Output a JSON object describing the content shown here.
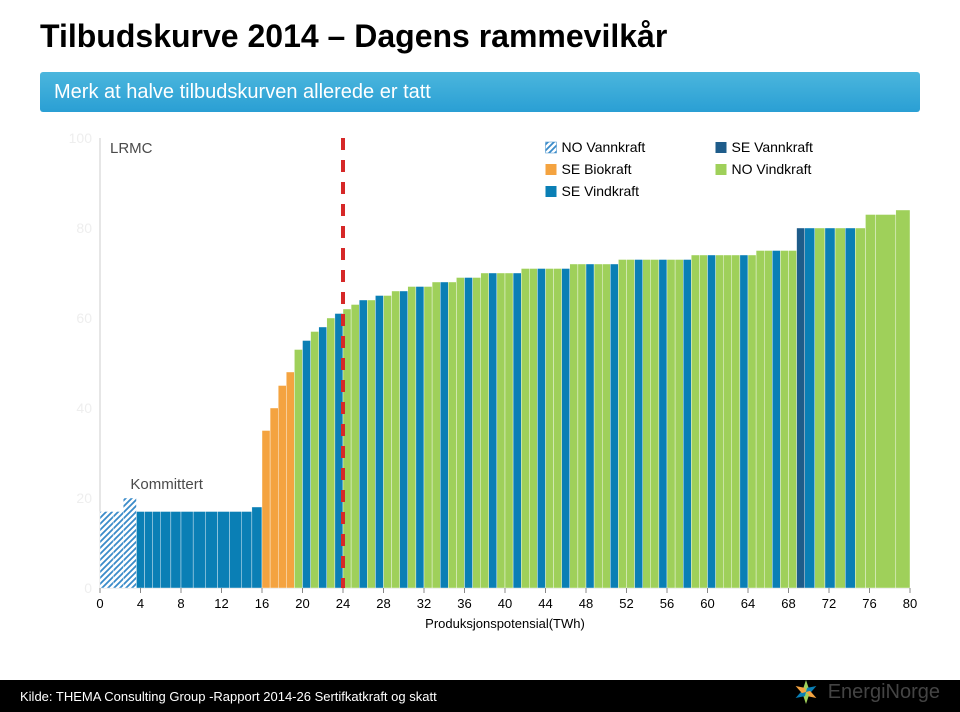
{
  "title": "Tilbudskurve 2014 – Dagens rammevilkår",
  "note": "Merk at halve tilbudskurven allerede er tatt",
  "chart": {
    "type": "bar",
    "lrmc_label": "LRMC",
    "kommittert_label": "Kommittert",
    "xaxis_label": "Produksjonspotensial(TWh)",
    "xlim": [
      0,
      80
    ],
    "ylim": [
      0,
      100
    ],
    "xticks": [
      0,
      4,
      8,
      12,
      16,
      20,
      24,
      28,
      32,
      36,
      40,
      44,
      48,
      52,
      56,
      60,
      64,
      68,
      72,
      76,
      80
    ],
    "yticks": [
      0,
      20,
      40,
      60,
      80,
      100
    ],
    "ytick_color": "#eeeeee",
    "plot_bg": "#ffffff",
    "axis_color": "#cccccc",
    "dashed_line_x": 24,
    "dashed_line_color": "#d62828",
    "colors": {
      "NO_Vannkraft": "#3a8bc9",
      "SE_Vannkraft": "#1e5c8a",
      "SE_Biokraft": "#f4a340",
      "NO_Vindkraft": "#9fd05a",
      "SE_Vindkraft": "#0a7fb5"
    },
    "patterns": {
      "NO_Vannkraft": "hatch",
      "SE_Vannkraft": "solid",
      "SE_Biokraft": "solid",
      "NO_Vindkraft": "solid",
      "SE_Vindkraft": "solid"
    },
    "legend": [
      {
        "key": "NO_Vannkraft",
        "label": "NO Vannkraft"
      },
      {
        "key": "SE_Vannkraft",
        "label": "SE Vannkraft"
      },
      {
        "key": "SE_Biokraft",
        "label": "SE Biokraft"
      },
      {
        "key": "NO_Vindkraft",
        "label": "NO Vindkraft"
      },
      {
        "key": "SE_Vindkraft",
        "label": "SE Vindkraft"
      }
    ],
    "bars": [
      {
        "x0": 0,
        "x1": 1.3,
        "h": 17,
        "cat": "NO_Vannkraft"
      },
      {
        "x0": 1.3,
        "x1": 2.3,
        "h": 17,
        "cat": "NO_Vannkraft"
      },
      {
        "x0": 2.3,
        "x1": 3.6,
        "h": 20,
        "cat": "NO_Vannkraft"
      },
      {
        "x0": 3.6,
        "x1": 4.4,
        "h": 17,
        "cat": "SE_Vindkraft"
      },
      {
        "x0": 4.4,
        "x1": 5.2,
        "h": 17,
        "cat": "SE_Vindkraft"
      },
      {
        "x0": 5.2,
        "x1": 6.0,
        "h": 17,
        "cat": "SE_Vindkraft"
      },
      {
        "x0": 6.0,
        "x1": 7.0,
        "h": 17,
        "cat": "SE_Vindkraft"
      },
      {
        "x0": 7.0,
        "x1": 8.0,
        "h": 17,
        "cat": "SE_Vindkraft"
      },
      {
        "x0": 8.0,
        "x1": 9.2,
        "h": 17,
        "cat": "SE_Vindkraft"
      },
      {
        "x0": 9.2,
        "x1": 10.4,
        "h": 17,
        "cat": "SE_Vindkraft"
      },
      {
        "x0": 10.4,
        "x1": 11.6,
        "h": 17,
        "cat": "SE_Vindkraft"
      },
      {
        "x0": 11.6,
        "x1": 12.8,
        "h": 17,
        "cat": "SE_Vindkraft"
      },
      {
        "x0": 12.8,
        "x1": 14.0,
        "h": 17,
        "cat": "SE_Vindkraft"
      },
      {
        "x0": 14.0,
        "x1": 15.0,
        "h": 17,
        "cat": "SE_Vindkraft"
      },
      {
        "x0": 15.0,
        "x1": 16.0,
        "h": 18,
        "cat": "SE_Vindkraft"
      },
      {
        "x0": 16.0,
        "x1": 16.8,
        "h": 35,
        "cat": "SE_Biokraft"
      },
      {
        "x0": 16.8,
        "x1": 17.6,
        "h": 40,
        "cat": "SE_Biokraft"
      },
      {
        "x0": 17.6,
        "x1": 18.4,
        "h": 45,
        "cat": "SE_Biokraft"
      },
      {
        "x0": 18.4,
        "x1": 19.2,
        "h": 48,
        "cat": "SE_Biokraft"
      },
      {
        "x0": 19.2,
        "x1": 20.0,
        "h": 53,
        "cat": "NO_Vindkraft"
      },
      {
        "x0": 20.0,
        "x1": 20.8,
        "h": 55,
        "cat": "SE_Vindkraft"
      },
      {
        "x0": 20.8,
        "x1": 21.6,
        "h": 57,
        "cat": "NO_Vindkraft"
      },
      {
        "x0": 21.6,
        "x1": 22.4,
        "h": 58,
        "cat": "SE_Vindkraft"
      },
      {
        "x0": 22.4,
        "x1": 23.2,
        "h": 60,
        "cat": "NO_Vindkraft"
      },
      {
        "x0": 23.2,
        "x1": 24.0,
        "h": 61,
        "cat": "SE_Vindkraft"
      },
      {
        "x0": 24.0,
        "x1": 24.8,
        "h": 62,
        "cat": "NO_Vindkraft"
      },
      {
        "x0": 24.8,
        "x1": 25.6,
        "h": 63,
        "cat": "NO_Vindkraft"
      },
      {
        "x0": 25.6,
        "x1": 26.4,
        "h": 64,
        "cat": "SE_Vindkraft"
      },
      {
        "x0": 26.4,
        "x1": 27.2,
        "h": 64,
        "cat": "NO_Vindkraft"
      },
      {
        "x0": 27.2,
        "x1": 28.0,
        "h": 65,
        "cat": "SE_Vindkraft"
      },
      {
        "x0": 28.0,
        "x1": 28.8,
        "h": 65,
        "cat": "NO_Vindkraft"
      },
      {
        "x0": 28.8,
        "x1": 29.6,
        "h": 66,
        "cat": "NO_Vindkraft"
      },
      {
        "x0": 29.6,
        "x1": 30.4,
        "h": 66,
        "cat": "SE_Vindkraft"
      },
      {
        "x0": 30.4,
        "x1": 31.2,
        "h": 67,
        "cat": "NO_Vindkraft"
      },
      {
        "x0": 31.2,
        "x1": 32.0,
        "h": 67,
        "cat": "SE_Vindkraft"
      },
      {
        "x0": 32.0,
        "x1": 32.8,
        "h": 67,
        "cat": "NO_Vindkraft"
      },
      {
        "x0": 32.8,
        "x1": 33.6,
        "h": 68,
        "cat": "NO_Vindkraft"
      },
      {
        "x0": 33.6,
        "x1": 34.4,
        "h": 68,
        "cat": "SE_Vindkraft"
      },
      {
        "x0": 34.4,
        "x1": 35.2,
        "h": 68,
        "cat": "NO_Vindkraft"
      },
      {
        "x0": 35.2,
        "x1": 36.0,
        "h": 69,
        "cat": "NO_Vindkraft"
      },
      {
        "x0": 36.0,
        "x1": 36.8,
        "h": 69,
        "cat": "SE_Vindkraft"
      },
      {
        "x0": 36.8,
        "x1": 37.6,
        "h": 69,
        "cat": "NO_Vindkraft"
      },
      {
        "x0": 37.6,
        "x1": 38.4,
        "h": 70,
        "cat": "NO_Vindkraft"
      },
      {
        "x0": 38.4,
        "x1": 39.2,
        "h": 70,
        "cat": "SE_Vindkraft"
      },
      {
        "x0": 39.2,
        "x1": 40.0,
        "h": 70,
        "cat": "NO_Vindkraft"
      },
      {
        "x0": 40.0,
        "x1": 40.8,
        "h": 70,
        "cat": "NO_Vindkraft"
      },
      {
        "x0": 40.8,
        "x1": 41.6,
        "h": 70,
        "cat": "SE_Vindkraft"
      },
      {
        "x0": 41.6,
        "x1": 42.4,
        "h": 71,
        "cat": "NO_Vindkraft"
      },
      {
        "x0": 42.4,
        "x1": 43.2,
        "h": 71,
        "cat": "NO_Vindkraft"
      },
      {
        "x0": 43.2,
        "x1": 44.0,
        "h": 71,
        "cat": "SE_Vindkraft"
      },
      {
        "x0": 44.0,
        "x1": 44.8,
        "h": 71,
        "cat": "NO_Vindkraft"
      },
      {
        "x0": 44.8,
        "x1": 45.6,
        "h": 71,
        "cat": "NO_Vindkraft"
      },
      {
        "x0": 45.6,
        "x1": 46.4,
        "h": 71,
        "cat": "SE_Vindkraft"
      },
      {
        "x0": 46.4,
        "x1": 47.2,
        "h": 72,
        "cat": "NO_Vindkraft"
      },
      {
        "x0": 47.2,
        "x1": 48.0,
        "h": 72,
        "cat": "NO_Vindkraft"
      },
      {
        "x0": 48.0,
        "x1": 48.8,
        "h": 72,
        "cat": "SE_Vindkraft"
      },
      {
        "x0": 48.8,
        "x1": 49.6,
        "h": 72,
        "cat": "NO_Vindkraft"
      },
      {
        "x0": 49.6,
        "x1": 50.4,
        "h": 72,
        "cat": "NO_Vindkraft"
      },
      {
        "x0": 50.4,
        "x1": 51.2,
        "h": 72,
        "cat": "SE_Vindkraft"
      },
      {
        "x0": 51.2,
        "x1": 52.0,
        "h": 73,
        "cat": "NO_Vindkraft"
      },
      {
        "x0": 52.0,
        "x1": 52.8,
        "h": 73,
        "cat": "NO_Vindkraft"
      },
      {
        "x0": 52.8,
        "x1": 53.6,
        "h": 73,
        "cat": "SE_Vindkraft"
      },
      {
        "x0": 53.6,
        "x1": 54.4,
        "h": 73,
        "cat": "NO_Vindkraft"
      },
      {
        "x0": 54.4,
        "x1": 55.2,
        "h": 73,
        "cat": "NO_Vindkraft"
      },
      {
        "x0": 55.2,
        "x1": 56.0,
        "h": 73,
        "cat": "SE_Vindkraft"
      },
      {
        "x0": 56.0,
        "x1": 56.8,
        "h": 73,
        "cat": "NO_Vindkraft"
      },
      {
        "x0": 56.8,
        "x1": 57.6,
        "h": 73,
        "cat": "NO_Vindkraft"
      },
      {
        "x0": 57.6,
        "x1": 58.4,
        "h": 73,
        "cat": "SE_Vindkraft"
      },
      {
        "x0": 58.4,
        "x1": 59.2,
        "h": 74,
        "cat": "NO_Vindkraft"
      },
      {
        "x0": 59.2,
        "x1": 60.0,
        "h": 74,
        "cat": "NO_Vindkraft"
      },
      {
        "x0": 60.0,
        "x1": 60.8,
        "h": 74,
        "cat": "SE_Vindkraft"
      },
      {
        "x0": 60.8,
        "x1": 61.6,
        "h": 74,
        "cat": "NO_Vindkraft"
      },
      {
        "x0": 61.6,
        "x1": 62.4,
        "h": 74,
        "cat": "NO_Vindkraft"
      },
      {
        "x0": 62.4,
        "x1": 63.2,
        "h": 74,
        "cat": "NO_Vindkraft"
      },
      {
        "x0": 63.2,
        "x1": 64.0,
        "h": 74,
        "cat": "SE_Vindkraft"
      },
      {
        "x0": 64.0,
        "x1": 64.8,
        "h": 74,
        "cat": "NO_Vindkraft"
      },
      {
        "x0": 64.8,
        "x1": 65.6,
        "h": 75,
        "cat": "NO_Vindkraft"
      },
      {
        "x0": 65.6,
        "x1": 66.4,
        "h": 75,
        "cat": "NO_Vindkraft"
      },
      {
        "x0": 66.4,
        "x1": 67.2,
        "h": 75,
        "cat": "SE_Vindkraft"
      },
      {
        "x0": 67.2,
        "x1": 68.0,
        "h": 75,
        "cat": "NO_Vindkraft"
      },
      {
        "x0": 68.0,
        "x1": 68.8,
        "h": 75,
        "cat": "NO_Vindkraft"
      },
      {
        "x0": 68.8,
        "x1": 69.6,
        "h": 80,
        "cat": "SE_Vannkraft"
      },
      {
        "x0": 69.6,
        "x1": 70.6,
        "h": 80,
        "cat": "SE_Vindkraft"
      },
      {
        "x0": 70.6,
        "x1": 71.6,
        "h": 80,
        "cat": "NO_Vindkraft"
      },
      {
        "x0": 71.6,
        "x1": 72.6,
        "h": 80,
        "cat": "SE_Vindkraft"
      },
      {
        "x0": 72.6,
        "x1": 73.6,
        "h": 80,
        "cat": "NO_Vindkraft"
      },
      {
        "x0": 73.6,
        "x1": 74.6,
        "h": 80,
        "cat": "SE_Vindkraft"
      },
      {
        "x0": 74.6,
        "x1": 75.6,
        "h": 80,
        "cat": "NO_Vindkraft"
      },
      {
        "x0": 75.6,
        "x1": 76.6,
        "h": 83,
        "cat": "NO_Vindkraft"
      },
      {
        "x0": 76.6,
        "x1": 78.6,
        "h": 83,
        "cat": "NO_Vindkraft"
      },
      {
        "x0": 78.6,
        "x1": 80.0,
        "h": 84,
        "cat": "NO_Vindkraft"
      }
    ]
  },
  "footer": {
    "source": "Kilde: THEMA Consulting Group -Rapport 2014-26 Sertifkatkraft og skatt",
    "logo_text": "EnergiNorge"
  }
}
